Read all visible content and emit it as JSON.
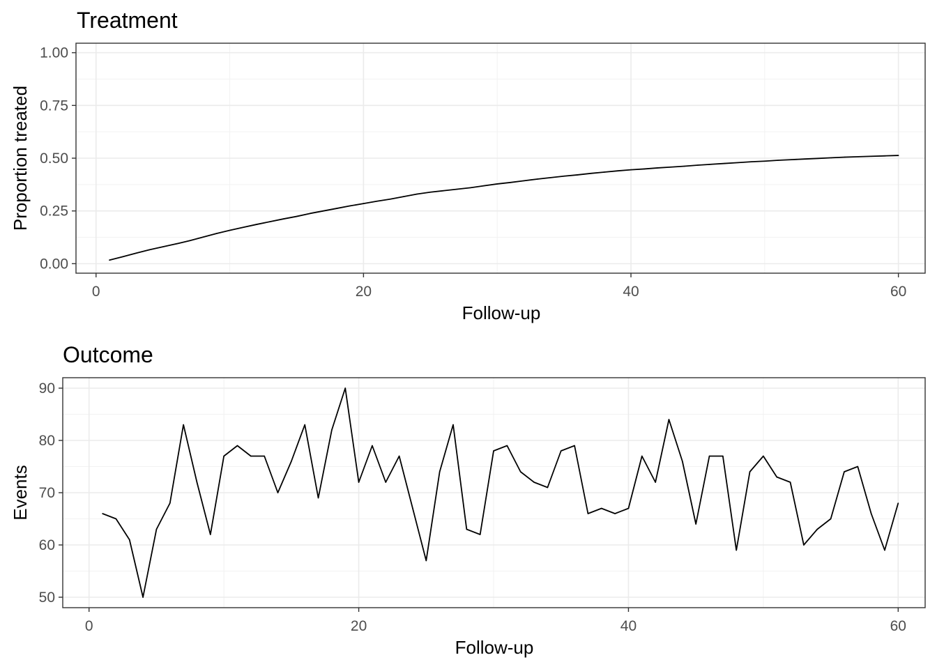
{
  "chart_data": [
    {
      "type": "line",
      "title": "Treatment",
      "xlabel": "Follow-up",
      "ylabel": "Proportion treated",
      "xlim": [
        -1.5,
        62
      ],
      "ylim": [
        -0.045,
        1.045
      ],
      "x_ticks": [
        0,
        20,
        40,
        60
      ],
      "x_tick_labels": [
        "0",
        "20",
        "40",
        "60"
      ],
      "y_ticks": [
        0,
        0.25,
        0.5,
        0.75,
        1
      ],
      "y_tick_labels": [
        "0.00",
        "0.25",
        "0.50",
        "0.75",
        "1.00"
      ],
      "grid": true,
      "series": [
        {
          "x": [
            1,
            2,
            3,
            4,
            5,
            6,
            7,
            8,
            9,
            10,
            11,
            12,
            13,
            14,
            15,
            16,
            17,
            18,
            19,
            20,
            21,
            22,
            23,
            24,
            25,
            26,
            27,
            28,
            29,
            30,
            31,
            32,
            33,
            34,
            35,
            36,
            37,
            38,
            39,
            40,
            41,
            42,
            43,
            44,
            45,
            46,
            47,
            48,
            49,
            50,
            51,
            52,
            53,
            54,
            55,
            56,
            57,
            58,
            59,
            60
          ],
          "values": [
            0.017,
            0.033,
            0.05,
            0.066,
            0.08,
            0.094,
            0.109,
            0.126,
            0.143,
            0.158,
            0.172,
            0.186,
            0.199,
            0.212,
            0.224,
            0.238,
            0.25,
            0.262,
            0.274,
            0.285,
            0.296,
            0.306,
            0.318,
            0.33,
            0.339,
            0.346,
            0.353,
            0.36,
            0.369,
            0.378,
            0.385,
            0.393,
            0.401,
            0.408,
            0.415,
            0.421,
            0.428,
            0.434,
            0.44,
            0.445,
            0.449,
            0.454,
            0.458,
            0.462,
            0.467,
            0.471,
            0.475,
            0.479,
            0.483,
            0.486,
            0.49,
            0.493,
            0.496,
            0.499,
            0.502,
            0.505,
            0.507,
            0.509,
            0.511,
            0.513
          ]
        }
      ]
    },
    {
      "type": "line",
      "title": "Outcome",
      "xlabel": "Follow-up",
      "ylabel": "Events",
      "xlim": [
        -1.95,
        62
      ],
      "ylim": [
        48,
        92
      ],
      "x_ticks": [
        0,
        20,
        40,
        60
      ],
      "x_tick_labels": [
        "0",
        "20",
        "40",
        "60"
      ],
      "y_ticks": [
        50,
        60,
        70,
        80,
        90
      ],
      "y_tick_labels": [
        "50",
        "60",
        "70",
        "80",
        "90"
      ],
      "grid": true,
      "series": [
        {
          "x": [
            1,
            2,
            3,
            4,
            5,
            6,
            7,
            8,
            9,
            10,
            11,
            12,
            13,
            14,
            15,
            16,
            17,
            18,
            19,
            20,
            21,
            22,
            23,
            24,
            25,
            26,
            27,
            28,
            29,
            30,
            31,
            32,
            33,
            34,
            35,
            36,
            37,
            38,
            39,
            40,
            41,
            42,
            43,
            44,
            45,
            46,
            47,
            48,
            49,
            50,
            51,
            52,
            53,
            54,
            55,
            56,
            57,
            58,
            59,
            60
          ],
          "values": [
            66,
            65,
            61,
            50,
            63,
            68,
            83,
            72,
            62,
            77,
            79,
            77,
            77,
            70,
            76,
            83,
            69,
            82,
            90,
            72,
            79,
            72,
            77,
            67,
            57,
            74,
            83,
            63,
            62,
            78,
            79,
            74,
            72,
            71,
            78,
            79,
            66,
            67,
            66,
            67,
            77,
            72,
            84,
            76,
            64,
            77,
            77,
            59,
            74,
            77,
            73,
            72,
            60,
            63,
            65,
            74,
            75,
            66,
            59,
            68
          ]
        }
      ]
    }
  ]
}
